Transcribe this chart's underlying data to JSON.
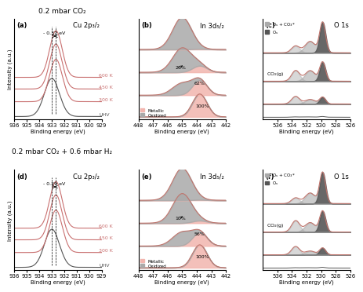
{
  "top_label": "0.2 mbar CO₂",
  "bottom_label": "0.2 mbar CO₂ + 0.6 mbar H₂",
  "panel_labels": [
    "(a)",
    "(b)",
    "(c)",
    "(d)",
    "(e)",
    "(f)"
  ],
  "panel_titles_cu": "Cu 2p₃/₂",
  "panel_titles_in": "In 3d₅/₂",
  "panel_titles_o": "O 1s",
  "xlabel": "Binding energy (eV)",
  "ylabel": "Intensity (a.u.)",
  "cu_xticks": [
    936,
    935,
    934,
    933,
    932,
    931,
    930,
    929
  ],
  "in_xticks": [
    448,
    447,
    446,
    445,
    444,
    443,
    442
  ],
  "o_xticks": [
    536,
    534,
    532,
    530,
    528,
    526
  ],
  "shift_label_a": "- 0.32 eV",
  "shift_label_d": "- 0.29 eV",
  "temp_colors_hot": "#c97070",
  "temp_color_dark": "#555555",
  "line_color": "#c0756d",
  "metallic_fill": "#f2b5ae",
  "oxidized_fill": "#aaaaaa",
  "bg_color": "#ffffff"
}
